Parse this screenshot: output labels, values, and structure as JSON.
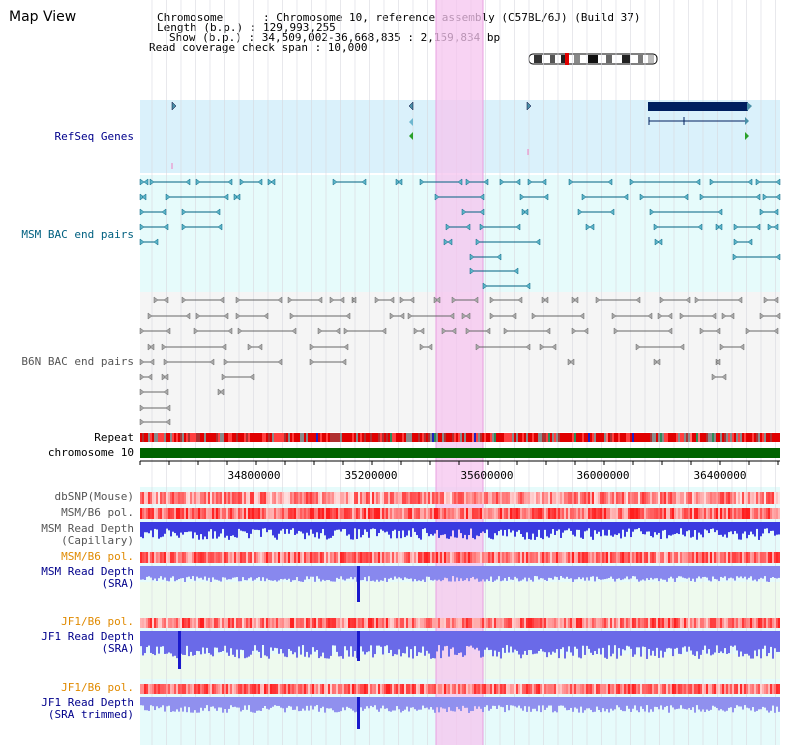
{
  "view_title": "Map View",
  "info": {
    "chromosome": "Chromosome      : Chromosome 10, reference assembly (C57BL/6J) (Build 37)",
    "length": "Length (b.p.) : 129,993,255",
    "show": "Show (b.p.) : 34,509,002-36,668,835 : 2,159,834 bp",
    "coverage": "Read coverage check span : 10,000"
  },
  "tracks": {
    "refseq": "RefSeq Genes",
    "msm_bac": "MSM BAC end pairs",
    "b6n_bac": "B6N BAC end pairs",
    "repeat": "Repeat",
    "chromosome": "chromosome 10",
    "dbsnp": "dbSNP(Mouse)",
    "msm_b6_pol": "MSM/B6 pol.",
    "msm_depth_cap_1": "MSM Read Depth",
    "msm_depth_cap_2": "(Capillary)",
    "msm_b6_pol_2": "MSM/B6 pol.",
    "msm_depth_sra_1": "MSM Read Depth",
    "msm_depth_sra_2": "(SRA)",
    "jf1_b6_pol": "JF1/B6 pol.",
    "jf1_depth_sra_1": "JF1 Read Depth",
    "jf1_depth_sra_2": "(SRA)",
    "jf1_b6_pol_2": "JF1/B6 pol.",
    "jf1_depth_trim_1": "JF1 Read Depth",
    "jf1_depth_trim_2": "(SRA trimmed)"
  },
  "axis": {
    "ticks": [
      "34800000",
      "35200000",
      "35600000",
      "36000000",
      "36400000"
    ]
  },
  "colors": {
    "refseq_bg": "#daf1fb",
    "msm_bac_bg": "#e6fbfb",
    "b6n_bac_bg": "#f5f5f5",
    "highlight": "#f9d6f4",
    "label_navy": "#00008b",
    "label_teal": "#006080",
    "label_gray": "#555555",
    "label_orange": "#e08a00",
    "chrom_green": "#006400",
    "gene_navy": "#001f5f"
  }
}
